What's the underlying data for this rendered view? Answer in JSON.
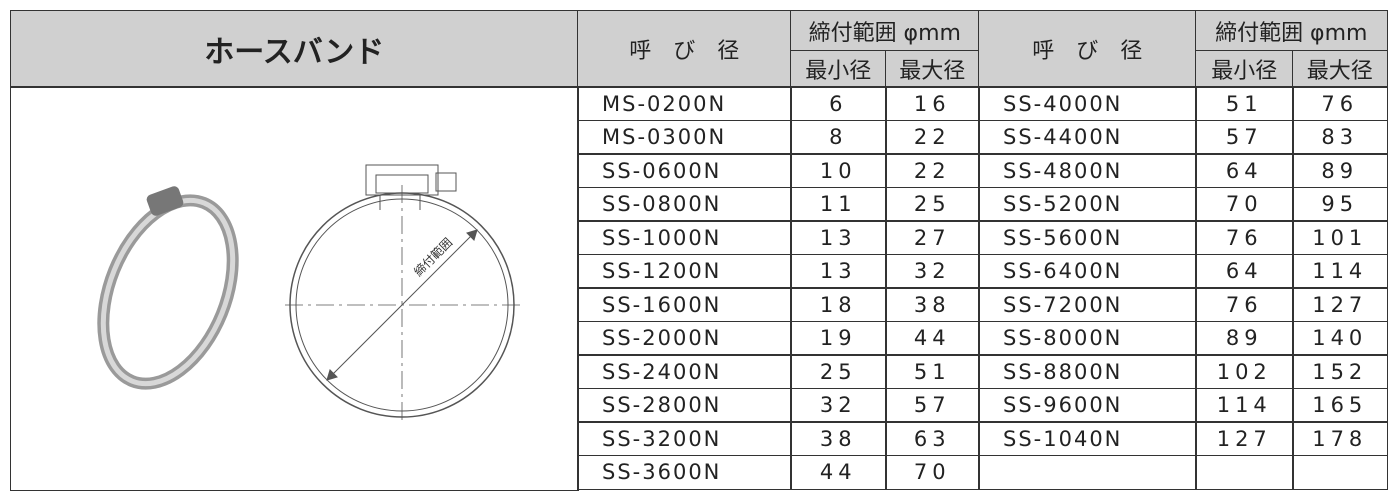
{
  "header": {
    "title": "ホースバンド",
    "name_label": "呼　び　径",
    "range_label": "締付範囲 φmm",
    "min_label": "最小径",
    "max_label": "最大径"
  },
  "diagram": {
    "label": "締付範囲"
  },
  "table": {
    "left_rows": [
      [
        "MS-0200N",
        6,
        16
      ],
      [
        "MS-0300N",
        8,
        22
      ],
      [
        "SS-0600N",
        10,
        22
      ],
      [
        "SS-0800N",
        11,
        25
      ],
      [
        "SS-1000N",
        13,
        27
      ],
      [
        "SS-1200N",
        13,
        32
      ],
      [
        "SS-1600N",
        18,
        38
      ],
      [
        "SS-2000N",
        19,
        44
      ],
      [
        "SS-2400N",
        25,
        51
      ],
      [
        "SS-2800N",
        32,
        57
      ],
      [
        "SS-3200N",
        38,
        63
      ],
      [
        "SS-3600N",
        44,
        70
      ]
    ],
    "right_rows": [
      [
        "SS-4000N",
        51,
        76
      ],
      [
        "SS-4400N",
        57,
        83
      ],
      [
        "SS-4800N",
        64,
        89
      ],
      [
        "SS-5200N",
        70,
        95
      ],
      [
        "SS-5600N",
        76,
        101
      ],
      [
        "SS-6400N",
        64,
        114
      ],
      [
        "SS-7200N",
        76,
        127
      ],
      [
        "SS-8000N",
        89,
        140
      ],
      [
        "SS-8800N",
        102,
        152
      ],
      [
        "SS-9600N",
        114,
        165
      ],
      [
        "SS-1040N",
        127,
        178
      ]
    ]
  }
}
